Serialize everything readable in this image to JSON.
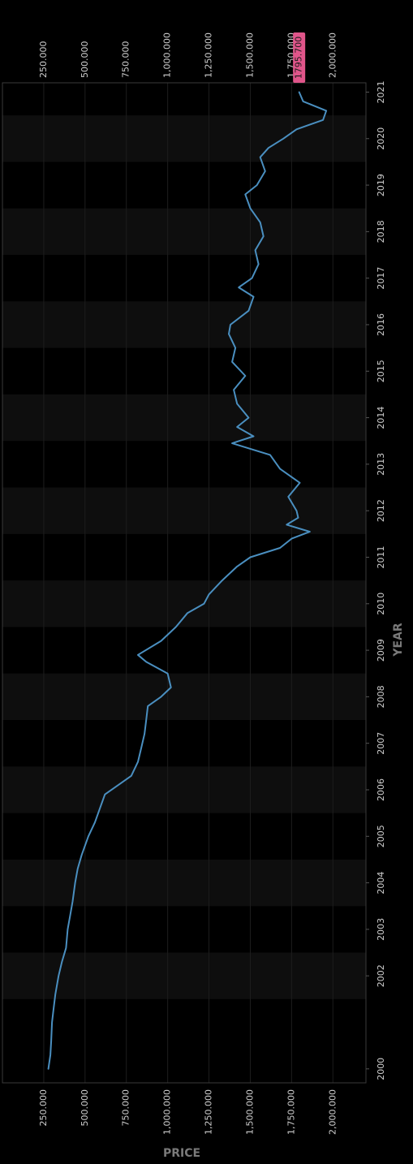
{
  "chart_data": {
    "type": "line",
    "orientation": "rotated-vertical",
    "xlabel": "YEAR",
    "ylabel": "PRICE",
    "x_tick_labels": [
      "2000",
      "2002",
      "2003",
      "2004",
      "2005",
      "2006",
      "2007",
      "2008",
      "2009",
      "2010",
      "2011",
      "2012",
      "2013",
      "2014",
      "2015",
      "2016",
      "2017",
      "2018",
      "2019",
      "2020",
      "2021"
    ],
    "y_tick_labels": [
      "250.000",
      "500.000",
      "750.000",
      "1,000.000",
      "1,250.000",
      "1,500.000",
      "1,750.000",
      "2,000.000"
    ],
    "y_ticks": [
      250000,
      500000,
      750000,
      1000000,
      1250000,
      1500000,
      1750000,
      2000000
    ],
    "xlim": [
      1999.7,
      2021.2
    ],
    "ylim": [
      0,
      2200000
    ],
    "grid": true,
    "alternating_year_bands": true,
    "current_value_label": "1795.700",
    "current_value": 1795700,
    "colors": {
      "background": "#000000",
      "band": "#0e0e0e",
      "line": "#4a8fc0",
      "badge": "#e0558a",
      "text": "#cfcfcf",
      "axis_title": "#7a7a7a"
    },
    "series": [
      {
        "x": [
          2000.0,
          2000.3,
          2000.6,
          2001.0,
          2001.3,
          2001.6,
          2002.0,
          2002.3,
          2002.6,
          2003.0,
          2003.3,
          2003.6,
          2004.0,
          2004.3,
          2004.6,
          2005.0,
          2005.3,
          2005.6,
          2005.9,
          2006.1,
          2006.3,
          2006.6,
          2006.9,
          2007.2,
          2007.5,
          2007.8,
          2008.0,
          2008.2,
          2008.5,
          2008.75,
          2008.9,
          2009.2,
          2009.5,
          2009.8,
          2010.0,
          2010.2,
          2010.5,
          2010.8,
          2011.0,
          2011.2,
          2011.4,
          2011.55,
          2011.7,
          2011.85,
          2012.0,
          2012.3,
          2012.6,
          2012.9,
          2013.2,
          2013.45,
          2013.6,
          2013.8,
          2014.0,
          2014.3,
          2014.6,
          2014.9,
          2015.2,
          2015.5,
          2015.8,
          2016.0,
          2016.3,
          2016.6,
          2016.8,
          2017.0,
          2017.3,
          2017.6,
          2017.9,
          2018.2,
          2018.5,
          2018.8,
          2019.0,
          2019.3,
          2019.6,
          2019.8,
          2020.0,
          2020.2,
          2020.4,
          2020.6,
          2020.8,
          2021.0
        ],
        "y": [
          278000,
          290000,
          295000,
          300000,
          310000,
          320000,
          340000,
          360000,
          385000,
          395000,
          410000,
          425000,
          440000,
          455000,
          480000,
          520000,
          560000,
          590000,
          620000,
          700000,
          780000,
          820000,
          840000,
          860000,
          870000,
          880000,
          960000,
          1020000,
          1000000,
          870000,
          820000,
          960000,
          1050000,
          1120000,
          1220000,
          1250000,
          1330000,
          1420000,
          1500000,
          1680000,
          1750000,
          1860000,
          1720000,
          1790000,
          1780000,
          1730000,
          1800000,
          1680000,
          1620000,
          1390000,
          1520000,
          1420000,
          1490000,
          1420000,
          1400000,
          1470000,
          1390000,
          1410000,
          1370000,
          1380000,
          1490000,
          1520000,
          1430000,
          1510000,
          1550000,
          1530000,
          1580000,
          1560000,
          1500000,
          1470000,
          1540000,
          1590000,
          1560000,
          1610000,
          1700000,
          1780000,
          1940000,
          1960000,
          1820000,
          1795700
        ]
      }
    ]
  }
}
